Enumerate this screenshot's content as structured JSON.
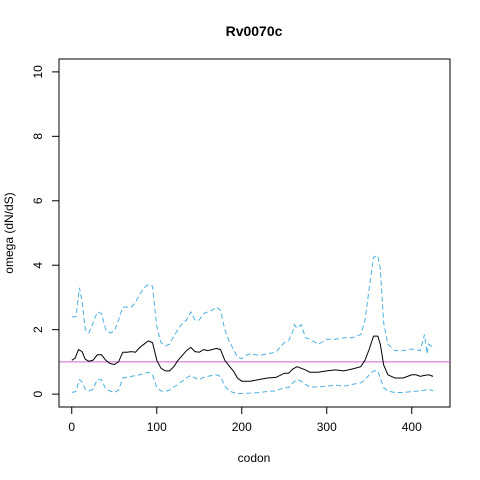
{
  "chart_data": {
    "type": "line",
    "title": "Rv0070c",
    "xlabel": "codon",
    "ylabel": "omega (dN/dS)",
    "xlim": [
      -15,
      445
    ],
    "ylim": [
      -0.4,
      10.4
    ],
    "x_ticks": [
      0,
      100,
      200,
      300,
      400
    ],
    "y_ticks": [
      0,
      2,
      4,
      6,
      8,
      10
    ],
    "reference_line": {
      "y": 1,
      "color": "#cc66cc"
    },
    "grid": false,
    "legend": "none",
    "series": [
      {
        "color": "#000000",
        "style": "solid",
        "points": [
          [
            0,
            1.05
          ],
          [
            4,
            1.12
          ],
          [
            8,
            1.38
          ],
          [
            12,
            1.32
          ],
          [
            16,
            1.08
          ],
          [
            20,
            1.02
          ],
          [
            25,
            1.05
          ],
          [
            30,
            1.22
          ],
          [
            35,
            1.22
          ],
          [
            40,
            1.05
          ],
          [
            45,
            0.95
          ],
          [
            50,
            0.92
          ],
          [
            55,
            1.0
          ],
          [
            60,
            1.3
          ],
          [
            65,
            1.3
          ],
          [
            70,
            1.32
          ],
          [
            75,
            1.3
          ],
          [
            80,
            1.45
          ],
          [
            85,
            1.55
          ],
          [
            90,
            1.65
          ],
          [
            95,
            1.6
          ],
          [
            100,
            1.05
          ],
          [
            105,
            0.8
          ],
          [
            110,
            0.72
          ],
          [
            115,
            0.72
          ],
          [
            120,
            0.85
          ],
          [
            125,
            1.05
          ],
          [
            130,
            1.2
          ],
          [
            135,
            1.35
          ],
          [
            140,
            1.45
          ],
          [
            145,
            1.32
          ],
          [
            150,
            1.3
          ],
          [
            155,
            1.38
          ],
          [
            160,
            1.35
          ],
          [
            165,
            1.38
          ],
          [
            170,
            1.42
          ],
          [
            175,
            1.38
          ],
          [
            180,
            1.05
          ],
          [
            185,
            0.88
          ],
          [
            190,
            0.72
          ],
          [
            195,
            0.5
          ],
          [
            200,
            0.4
          ],
          [
            210,
            0.4
          ],
          [
            220,
            0.45
          ],
          [
            230,
            0.5
          ],
          [
            240,
            0.52
          ],
          [
            245,
            0.58
          ],
          [
            250,
            0.65
          ],
          [
            255,
            0.65
          ],
          [
            260,
            0.78
          ],
          [
            265,
            0.85
          ],
          [
            270,
            0.8
          ],
          [
            275,
            0.75
          ],
          [
            280,
            0.68
          ],
          [
            290,
            0.68
          ],
          [
            300,
            0.72
          ],
          [
            310,
            0.75
          ],
          [
            320,
            0.72
          ],
          [
            330,
            0.78
          ],
          [
            340,
            0.85
          ],
          [
            345,
            1.05
          ],
          [
            350,
            1.4
          ],
          [
            355,
            1.8
          ],
          [
            360,
            1.8
          ],
          [
            363,
            1.55
          ],
          [
            367,
            0.9
          ],
          [
            372,
            0.6
          ],
          [
            380,
            0.5
          ],
          [
            390,
            0.5
          ],
          [
            400,
            0.6
          ],
          [
            405,
            0.6
          ],
          [
            410,
            0.55
          ],
          [
            415,
            0.58
          ],
          [
            420,
            0.6
          ],
          [
            425,
            0.55
          ]
        ]
      },
      {
        "color": "#4ab0e0",
        "style": "dashed",
        "points": [
          [
            0,
            2.4
          ],
          [
            5,
            2.4
          ],
          [
            9,
            3.3
          ],
          [
            12,
            2.9
          ],
          [
            16,
            2.0
          ],
          [
            20,
            1.9
          ],
          [
            25,
            2.2
          ],
          [
            30,
            2.55
          ],
          [
            35,
            2.5
          ],
          [
            40,
            2.0
          ],
          [
            45,
            1.9
          ],
          [
            50,
            1.95
          ],
          [
            55,
            2.3
          ],
          [
            60,
            2.7
          ],
          [
            70,
            2.7
          ],
          [
            75,
            2.85
          ],
          [
            80,
            3.1
          ],
          [
            85,
            3.3
          ],
          [
            90,
            3.4
          ],
          [
            95,
            3.35
          ],
          [
            100,
            2.1
          ],
          [
            105,
            1.6
          ],
          [
            110,
            1.5
          ],
          [
            115,
            1.55
          ],
          [
            120,
            1.8
          ],
          [
            125,
            2.0
          ],
          [
            130,
            2.2
          ],
          [
            135,
            2.3
          ],
          [
            140,
            2.55
          ],
          [
            145,
            2.3
          ],
          [
            150,
            2.3
          ],
          [
            155,
            2.5
          ],
          [
            160,
            2.55
          ],
          [
            165,
            2.6
          ],
          [
            170,
            2.7
          ],
          [
            175,
            2.6
          ],
          [
            180,
            2.0
          ],
          [
            185,
            1.65
          ],
          [
            190,
            1.4
          ],
          [
            195,
            1.15
          ],
          [
            200,
            1.1
          ],
          [
            205,
            1.2
          ],
          [
            210,
            1.25
          ],
          [
            220,
            1.2
          ],
          [
            230,
            1.25
          ],
          [
            240,
            1.3
          ],
          [
            245,
            1.45
          ],
          [
            250,
            1.6
          ],
          [
            255,
            1.65
          ],
          [
            260,
            1.95
          ],
          [
            262,
            2.15
          ],
          [
            265,
            2.05
          ],
          [
            270,
            2.15
          ],
          [
            275,
            1.75
          ],
          [
            280,
            1.7
          ],
          [
            290,
            1.55
          ],
          [
            300,
            1.7
          ],
          [
            310,
            1.7
          ],
          [
            320,
            1.75
          ],
          [
            330,
            1.75
          ],
          [
            340,
            1.85
          ],
          [
            345,
            2.3
          ],
          [
            350,
            3.3
          ],
          [
            355,
            4.25
          ],
          [
            360,
            4.3
          ],
          [
            363,
            3.9
          ],
          [
            367,
            2.2
          ],
          [
            372,
            1.55
          ],
          [
            380,
            1.35
          ],
          [
            390,
            1.35
          ],
          [
            400,
            1.4
          ],
          [
            410,
            1.35
          ],
          [
            415,
            1.85
          ],
          [
            418,
            1.25
          ],
          [
            420,
            1.55
          ],
          [
            425,
            1.45
          ]
        ]
      },
      {
        "color": "#4ab0e0",
        "style": "dashed",
        "points": [
          [
            0,
            0.05
          ],
          [
            5,
            0.08
          ],
          [
            9,
            0.45
          ],
          [
            12,
            0.38
          ],
          [
            16,
            0.15
          ],
          [
            20,
            0.1
          ],
          [
            25,
            0.15
          ],
          [
            30,
            0.45
          ],
          [
            35,
            0.45
          ],
          [
            40,
            0.15
          ],
          [
            45,
            0.1
          ],
          [
            50,
            0.05
          ],
          [
            55,
            0.12
          ],
          [
            60,
            0.5
          ],
          [
            70,
            0.55
          ],
          [
            80,
            0.6
          ],
          [
            90,
            0.68
          ],
          [
            95,
            0.6
          ],
          [
            100,
            0.2
          ],
          [
            105,
            0.1
          ],
          [
            110,
            0.08
          ],
          [
            115,
            0.12
          ],
          [
            120,
            0.22
          ],
          [
            125,
            0.3
          ],
          [
            130,
            0.4
          ],
          [
            135,
            0.5
          ],
          [
            140,
            0.58
          ],
          [
            145,
            0.5
          ],
          [
            150,
            0.45
          ],
          [
            155,
            0.52
          ],
          [
            160,
            0.55
          ],
          [
            165,
            0.58
          ],
          [
            170,
            0.6
          ],
          [
            175,
            0.55
          ],
          [
            180,
            0.25
          ],
          [
            185,
            0.1
          ],
          [
            190,
            0.05
          ],
          [
            195,
            0.02
          ],
          [
            200,
            0.02
          ],
          [
            210,
            0.03
          ],
          [
            220,
            0.05
          ],
          [
            230,
            0.08
          ],
          [
            240,
            0.1
          ],
          [
            245,
            0.15
          ],
          [
            250,
            0.2
          ],
          [
            255,
            0.2
          ],
          [
            260,
            0.35
          ],
          [
            265,
            0.45
          ],
          [
            270,
            0.4
          ],
          [
            275,
            0.3
          ],
          [
            280,
            0.22
          ],
          [
            290,
            0.22
          ],
          [
            300,
            0.25
          ],
          [
            310,
            0.28
          ],
          [
            320,
            0.25
          ],
          [
            330,
            0.3
          ],
          [
            340,
            0.35
          ],
          [
            345,
            0.45
          ],
          [
            350,
            0.6
          ],
          [
            355,
            0.72
          ],
          [
            360,
            0.72
          ],
          [
            363,
            0.5
          ],
          [
            367,
            0.2
          ],
          [
            372,
            0.1
          ],
          [
            380,
            0.05
          ],
          [
            390,
            0.05
          ],
          [
            400,
            0.08
          ],
          [
            410,
            0.1
          ],
          [
            415,
            0.12
          ],
          [
            420,
            0.15
          ],
          [
            425,
            0.1
          ]
        ]
      }
    ]
  }
}
